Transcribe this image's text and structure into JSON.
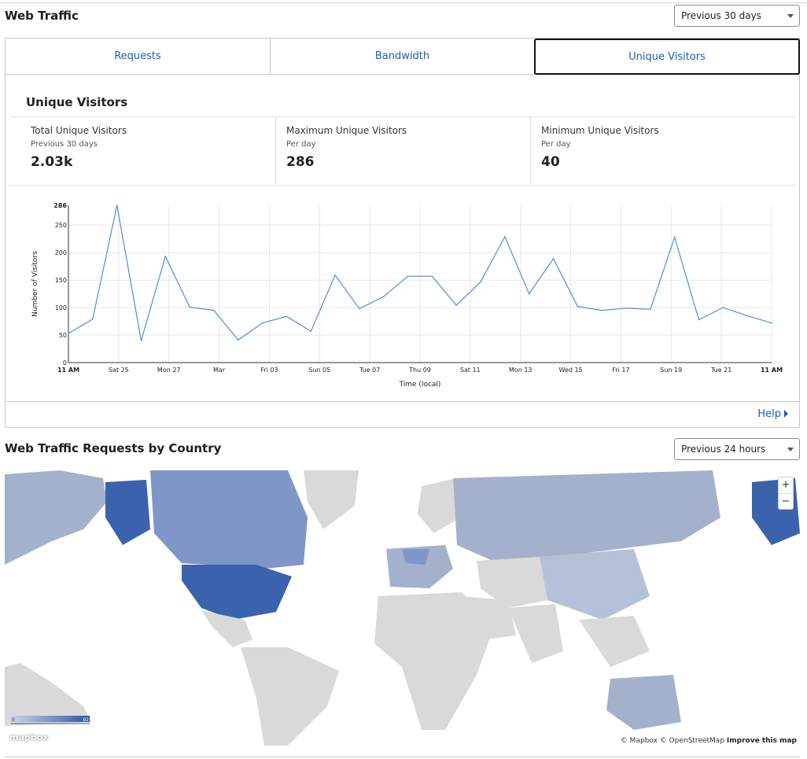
{
  "header": {
    "title": "Web Traffic",
    "range": "Previous 30 days"
  },
  "tabs": [
    {
      "label": "Requests"
    },
    {
      "label": "Bandwidth"
    },
    {
      "label": "Unique Visitors"
    }
  ],
  "panel": {
    "title": "Unique Visitors",
    "stats": [
      {
        "label": "Total Unique Visitors",
        "sub": "Previous 30 days",
        "value": "2.03k"
      },
      {
        "label": "Maximum Unique Visitors",
        "sub": "Per day",
        "value": "286"
      },
      {
        "label": "Minimum Unique Visitors",
        "sub": "Per day",
        "value": "40"
      }
    ],
    "help": "Help"
  },
  "chart_data": {
    "type": "line",
    "ylabel": "Number of Visitors",
    "xlabel": "Time (local)",
    "ylim": [
      0,
      286
    ],
    "y_ticks": [
      0,
      50,
      100,
      150,
      200,
      250,
      286
    ],
    "x_tick_labels": [
      "11 AM",
      "Sat 25",
      "Mon 27",
      "Mar",
      "Fri 03",
      "Sun 05",
      "Tue 07",
      "Thu 09",
      "Sat 11",
      "Mon 13",
      "Wed 15",
      "Fri 17",
      "Sun 19",
      "Tue 21",
      "11 AM"
    ],
    "grid": true,
    "series": [
      {
        "color": "#4a90e2",
        "values": [
          53,
          79,
          286,
          40,
          193,
          101,
          95,
          41,
          72,
          84,
          57,
          159,
          98,
          120,
          157,
          157,
          104,
          147,
          229,
          125,
          189,
          102,
          95,
          99,
          97,
          228,
          78,
          100,
          85,
          72
        ]
      }
    ]
  },
  "map_section": {
    "title": "Web Traffic Requests by Country",
    "range": "Previous 24 hours",
    "zoom_in": "+",
    "zoom_out": "−",
    "legend_min": "0",
    "legend_max": "92",
    "logo": "mapbox",
    "attribution": "© Mapbox © OpenStreetMap",
    "improve": "Improve this map"
  }
}
